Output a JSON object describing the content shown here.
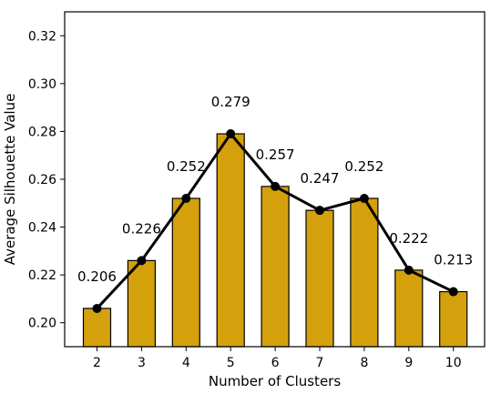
{
  "chart_data": {
    "type": "bar",
    "xlabel": "Number of Clusters",
    "ylabel": "Average Silhouette Value",
    "categories": [
      "2",
      "3",
      "4",
      "5",
      "6",
      "7",
      "8",
      "9",
      "10"
    ],
    "values": [
      0.206,
      0.226,
      0.252,
      0.279,
      0.257,
      0.247,
      0.252,
      0.222,
      0.213
    ],
    "data_labels": [
      "0.206",
      "0.226",
      "0.252",
      "0.279",
      "0.257",
      "0.247",
      "0.252",
      "0.222",
      "0.213"
    ],
    "overlay": "line",
    "ylim": [
      0.19,
      0.33
    ],
    "yticks": [
      0.2,
      0.22,
      0.24,
      0.26,
      0.28,
      0.3,
      0.32
    ],
    "ytick_labels": [
      "0.20",
      "0.22",
      "0.24",
      "0.26",
      "0.28",
      "0.30",
      "0.32"
    ],
    "grid": false,
    "legend": "none",
    "colors": {
      "bar_fill": "#d4a00c",
      "bar_edge": "#000000",
      "line": "#000000",
      "marker": "#000000"
    }
  }
}
